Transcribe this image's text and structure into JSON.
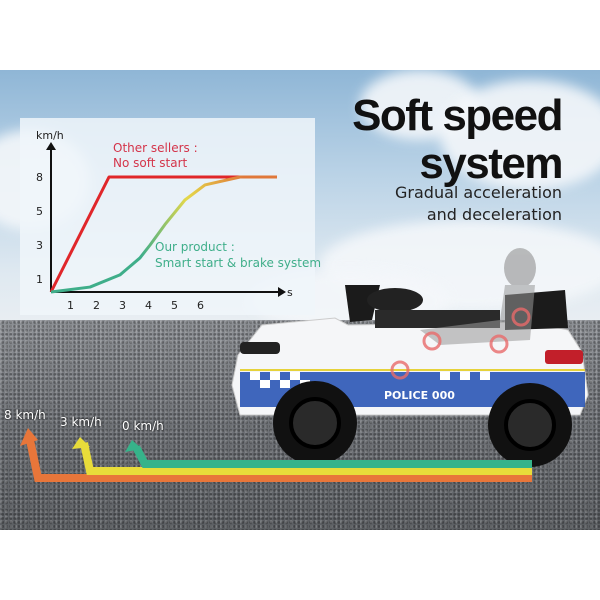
{
  "headline": {
    "line1": "Soft speed",
    "line2": "system"
  },
  "subheadline": {
    "line1": "Gradual acceleration",
    "line2": "and deceleration"
  },
  "car_plate_text": "POLICE 000",
  "speed_arrows": [
    {
      "label": "8 km/h",
      "color": "#e8763a"
    },
    {
      "label": "3 km/h",
      "color": "#e8dc3a"
    },
    {
      "label": "0 km/h",
      "color": "#36b38a"
    }
  ],
  "chart_data": {
    "type": "line",
    "xlabel": "s",
    "ylabel": "km/h",
    "x_ticks": [
      "1",
      "2",
      "3",
      "4",
      "5",
      "6"
    ],
    "y_ticks": [
      "1",
      "3",
      "5",
      "8"
    ],
    "grid": false,
    "series": [
      {
        "name": "Other sellers : No soft start",
        "label_line1": "Other sellers :",
        "label_line2": "No soft start",
        "color": "#e0262a",
        "points": [
          [
            0.27,
            0
          ],
          [
            2.5,
            8
          ],
          [
            8.96,
            8
          ]
        ]
      },
      {
        "name": "Our product : Smart start & brake system",
        "label_line1": "Our product :",
        "label_line2": "Smart start & brake system",
        "color": "#3fae8a",
        "points": [
          [
            0.27,
            0
          ],
          [
            1.77,
            0.38
          ],
          [
            2.92,
            1.24
          ],
          [
            3.69,
            2.24
          ],
          [
            4.08,
            3
          ],
          [
            4.65,
            4.2
          ],
          [
            5.42,
            5.97
          ],
          [
            6.19,
            7.3
          ],
          [
            7.54,
            8
          ],
          [
            8.96,
            8
          ]
        ]
      }
    ]
  }
}
